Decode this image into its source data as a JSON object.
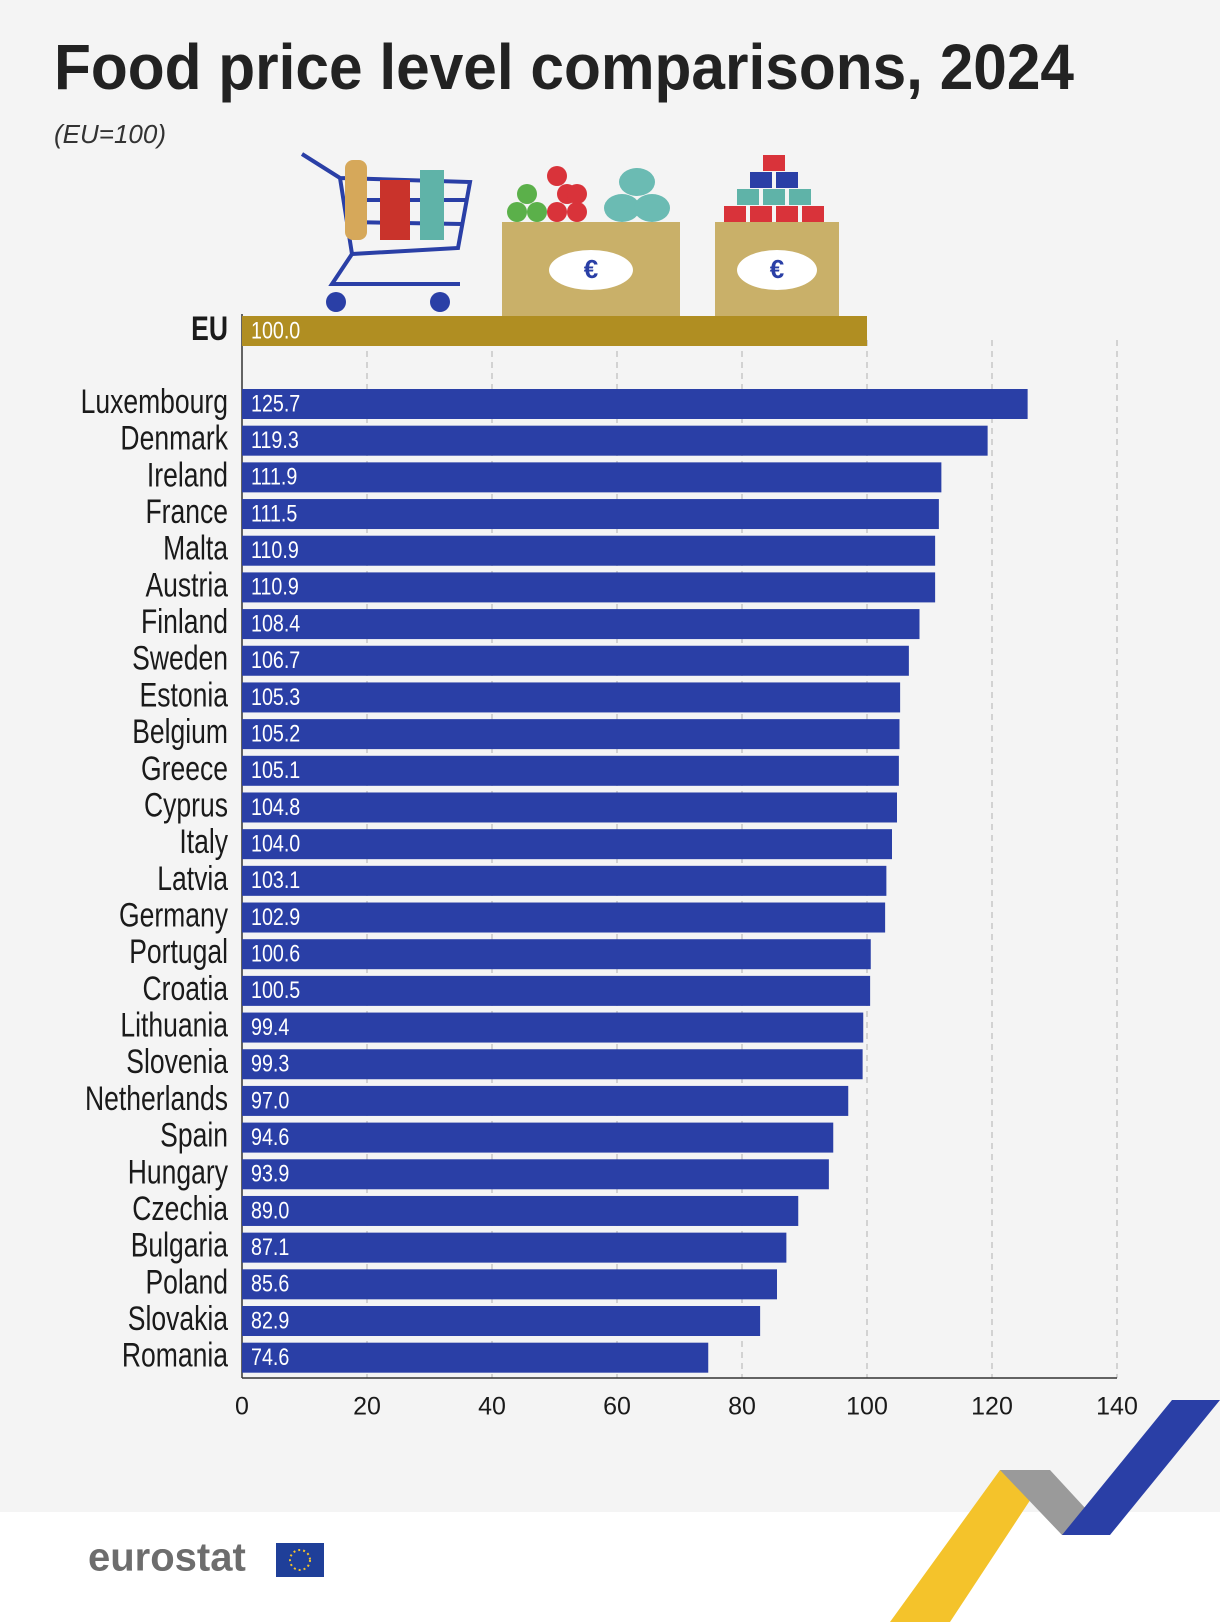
{
  "chart_data": {
    "type": "bar",
    "orientation": "horizontal",
    "title": "Food price level comparisons, 2024",
    "subtitle": "(EU=100)",
    "reference": {
      "name": "EU",
      "value": 100,
      "value_label": "100.0",
      "color": "#b08e22"
    },
    "categories": [
      "Luxembourg",
      "Denmark",
      "Ireland",
      "France",
      "Malta",
      "Austria",
      "Finland",
      "Sweden",
      "Estonia",
      "Belgium",
      "Greece",
      "Cyprus",
      "Italy",
      "Latvia",
      "Germany",
      "Portugal",
      "Croatia",
      "Lithuania",
      "Slovenia",
      "Netherlands",
      "Spain",
      "Hungary",
      "Czechia",
      "Bulgaria",
      "Poland",
      "Slovakia",
      "Romania"
    ],
    "values": [
      125.7,
      119.3,
      111.9,
      111.5,
      110.9,
      110.9,
      108.4,
      106.7,
      105.3,
      105.2,
      105.1,
      104.8,
      104.0,
      103.1,
      102.9,
      100.6,
      100.5,
      99.4,
      99.3,
      97.0,
      94.6,
      93.9,
      89.0,
      87.1,
      85.6,
      82.9,
      74.6
    ],
    "value_labels": [
      "125.7",
      "119.3",
      "111.9",
      "111.5",
      "110.9",
      "110.9",
      "108.4",
      "106.7",
      "105.3",
      "105.2",
      "105.1",
      "104.8",
      "104.0",
      "103.1",
      "102.9",
      "100.6",
      "100.5",
      "99.4",
      "99.3",
      "97.0",
      "94.6",
      "93.9",
      "89.0",
      "87.1",
      "85.6",
      "82.9",
      "74.6"
    ],
    "color": "#2a3fa6",
    "xlim": [
      0,
      140
    ],
    "xticks": [
      0,
      20,
      40,
      60,
      80,
      100,
      120,
      140
    ],
    "grid": true
  },
  "footer": {
    "logo": "eurostat"
  }
}
